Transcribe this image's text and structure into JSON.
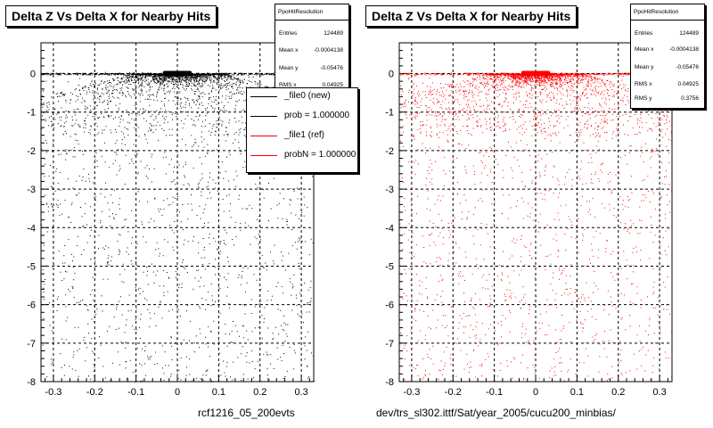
{
  "chart_data": [
    {
      "type": "scatter",
      "title": "Delta Z Vs Delta X for Nearby Hits",
      "xlim": [
        -0.33,
        0.33
      ],
      "ylim": [
        -8,
        0.8
      ],
      "grid": true,
      "xticks": [
        "-0.3",
        "-0.2",
        "-0.1",
        "0",
        "0.1",
        "0.2",
        "0.3"
      ],
      "yticks": [
        "0",
        "-1",
        "-2",
        "-3",
        "-4",
        "-5",
        "-6",
        "-7",
        "-8"
      ],
      "marker_color": "#000000",
      "dense_core": {
        "x_min": -0.035,
        "x_max": 0.035,
        "y": 0
      },
      "x_caption": "rcf1216_05_200evts",
      "stats": {
        "name": "PpoHitResolution",
        "rows": [
          {
            "label": "Entries",
            "value": "124489"
          },
          {
            "label": "Mean x",
            "value": "-0.0004138"
          },
          {
            "label": "Mean y",
            "value": "-0.05476"
          },
          {
            "label": "RMS x",
            "value": "0.04925"
          }
        ]
      },
      "legend": {
        "placement": "top-right",
        "entries": [
          {
            "label": "_file0 (new)",
            "color": "#000000"
          },
          {
            "label": "prob = 1.000000",
            "color": "#000000"
          },
          {
            "label": "_file1 (ref)",
            "color": "#ff0000"
          },
          {
            "label": "probN = 1.000000",
            "color": "#ff0000"
          }
        ]
      }
    },
    {
      "type": "scatter",
      "title": "Delta Z Vs Delta X for Nearby Hits",
      "xlim": [
        -0.33,
        0.33
      ],
      "ylim": [
        -8,
        0.8
      ],
      "grid": true,
      "xticks": [
        "-0.3",
        "-0.2",
        "-0.1",
        "0",
        "0.1",
        "0.2",
        "0.3"
      ],
      "yticks": [
        "0",
        "-1",
        "-2",
        "-3",
        "-4",
        "-5",
        "-6",
        "-7",
        "-8"
      ],
      "marker_color": "#ff0000",
      "dense_core": {
        "x_min": -0.035,
        "x_max": 0.035,
        "y": 0
      },
      "x_caption": "dev/trs_sl302.ittf/Sat/year_2005/cucu200_minbias/",
      "stats": {
        "name": "PpoHitResolution",
        "rows": [
          {
            "label": "Entries",
            "value": "124489"
          },
          {
            "label": "Mean x",
            "value": "-0.0004138"
          },
          {
            "label": "Mean y",
            "value": "-0.05476"
          },
          {
            "label": "RMS x",
            "value": "0.04925"
          },
          {
            "label": "RMS y",
            "value": "0.3756"
          }
        ]
      }
    }
  ]
}
